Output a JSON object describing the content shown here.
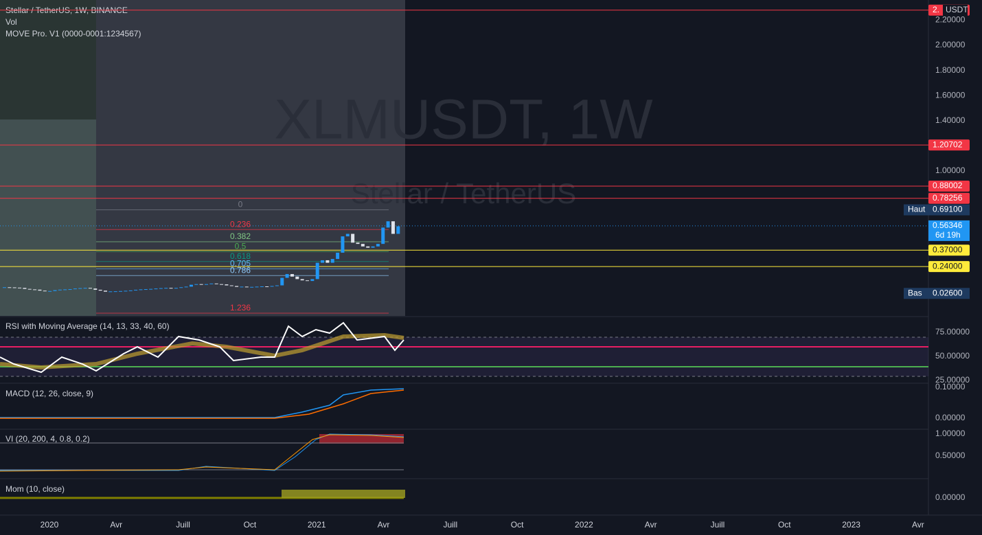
{
  "legend": {
    "symbol": "Stellar / TetherUS, 1W, BINANCE",
    "volume": "Vol",
    "indicator": "MOVE Pro. V1 (0000-0001:1234567)"
  },
  "watermark": {
    "ticker": "XLMUSDT, 1W",
    "name": "Stellar / TetherUS"
  },
  "price_axis": {
    "currency": "USDT",
    "ticks": [
      {
        "value": 2.2,
        "label": "2.20000"
      },
      {
        "value": 2.0,
        "label": "2.00000"
      },
      {
        "value": 1.8,
        "label": "1.80000"
      },
      {
        "value": 1.6,
        "label": "1.60000"
      },
      {
        "value": 1.4,
        "label": "1.40000"
      },
      {
        "value": 1.0,
        "label": "1.00000"
      }
    ]
  },
  "levels": [
    {
      "value": 2.28,
      "label": "2.",
      "color": "#f23645"
    },
    {
      "value": 1.20702,
      "label": "1.20702",
      "color": "#f23645"
    },
    {
      "value": 0.88002,
      "label": "0.88002",
      "color": "#f23645"
    },
    {
      "value": 0.78256,
      "label": "0.78256",
      "color": "#f23645"
    },
    {
      "value": 0.37,
      "label": "0.37000",
      "color": "#ffeb3b"
    },
    {
      "value": 0.24,
      "label": "0.24000",
      "color": "#ffeb3b"
    }
  ],
  "markers": [
    {
      "name": "Haut",
      "value": 0.691,
      "label": "0.69100"
    },
    {
      "name": "Bas",
      "value": 0.026,
      "label": "0.02600"
    }
  ],
  "last_price": {
    "value": 0.56346,
    "label": "0.56346",
    "countdown": "6d 19h"
  },
  "fibonacci": [
    {
      "value": 0,
      "label": "0"
    },
    {
      "value": 0.236,
      "label": "0.236"
    },
    {
      "value": 0.382,
      "label": "0.382"
    },
    {
      "value": 0.5,
      "label": "0.5"
    },
    {
      "value": 0.618,
      "label": "0.618"
    },
    {
      "value": 0.705,
      "label": "0.705"
    },
    {
      "value": 0.786,
      "label": "0.786"
    },
    {
      "value": 1.236,
      "label": "1.236"
    }
  ],
  "price_panel": {
    "closes": [
      0.075,
      0.074,
      0.072,
      0.07,
      0.062,
      0.058,
      0.056,
      0.048,
      0.045,
      0.045,
      0.052,
      0.056,
      0.058,
      0.06,
      0.065,
      0.068,
      0.07,
      0.065,
      0.055,
      0.048,
      0.04,
      0.042,
      0.043,
      0.045,
      0.047,
      0.05,
      0.055,
      0.058,
      0.06,
      0.062,
      0.065,
      0.068,
      0.07,
      0.068,
      0.07,
      0.075,
      0.08,
      0.095,
      0.1,
      0.098,
      0.1,
      0.105,
      0.1,
      0.098,
      0.09,
      0.085,
      0.078,
      0.08,
      0.075,
      0.078,
      0.08,
      0.082,
      0.08,
      0.085,
      0.09,
      0.15,
      0.18,
      0.16,
      0.14,
      0.13,
      0.125,
      0.14,
      0.27,
      0.29,
      0.27,
      0.3,
      0.35,
      0.48,
      0.5,
      0.43,
      0.42,
      0.4,
      0.39,
      0.4,
      0.42,
      0.55,
      0.6,
      0.5,
      0.56
    ]
  },
  "indicators": [
    {
      "title": "RSI with Moving Average (14, 13, 33, 40, 60)",
      "ticks": [
        "75.00000",
        "50.00000",
        "25.00000"
      ]
    },
    {
      "title": "MACD (12, 26, close, 9)",
      "ticks": [
        "0.10000",
        "0.00000"
      ]
    },
    {
      "title": "VI (20, 200, 4, 0.8, 0.2)",
      "ticks": [
        "1.00000",
        "0.50000"
      ]
    },
    {
      "title": "Mom (10, close)",
      "ticks": [
        "0.00000"
      ]
    }
  ],
  "time_axis": [
    "2020",
    "Avr",
    "Juill",
    "Oct",
    "2021",
    "Avr",
    "Juill",
    "Oct",
    "2022",
    "Avr",
    "Juill",
    "Oct",
    "2023",
    "Avr"
  ]
}
